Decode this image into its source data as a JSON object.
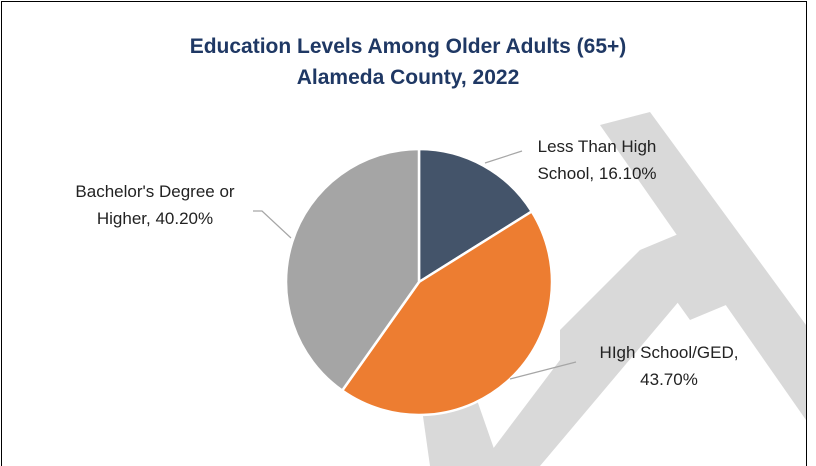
{
  "chart_data": {
    "type": "pie",
    "title": "Education Levels Among Older Adults (65+)",
    "subtitle": "Alameda County, 2022",
    "values": [
      16.1,
      43.7,
      40.2
    ],
    "value_labels": [
      "Less Than High School, 16.10%",
      "HIgh School/GED, 43.70%",
      "Bachelor's Degree or Higher, 40.20%"
    ],
    "colors": [
      "#44546a",
      "#ed7d31",
      "#a5a5a5"
    ]
  }
}
